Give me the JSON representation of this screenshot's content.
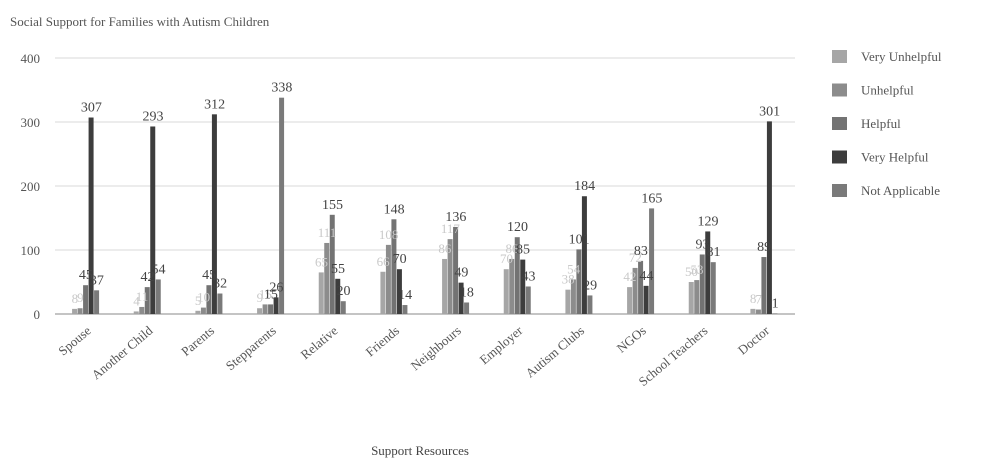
{
  "chart_data": {
    "type": "bar",
    "title": "Social Support for Families with Autism Children",
    "xlabel": "Support Resources",
    "ylabel": "",
    "ylim": [
      0,
      400
    ],
    "yticks": [
      "0",
      "100",
      "200",
      "300",
      "400"
    ],
    "grid": true,
    "legend_position": "right",
    "categories": [
      "Spouse",
      "Another Child",
      "Parents",
      "Stepparents",
      "Relative",
      "Friends",
      "Neighbours",
      "Employer",
      "Autism Clubs",
      "NGOs",
      "School Teachers",
      "Doctor"
    ],
    "series": [
      {
        "name": "Very Unhelpful",
        "color": "#a6a6a6",
        "values": [
          8,
          4,
          5,
          9,
          65,
          66,
          86,
          70,
          38,
          42,
          50,
          8
        ]
      },
      {
        "name": "Unhelpful",
        "color": "#8c8c8c",
        "values": [
          9,
          11,
          10,
          15,
          111,
          108,
          117,
          86,
          54,
          72,
          53,
          7
        ]
      },
      {
        "name": "Helpful",
        "color": "#737373",
        "values": [
          45,
          42,
          45,
          15,
          155,
          148,
          136,
          120,
          101,
          83,
          93,
          89
        ]
      },
      {
        "name": "Very Helpful",
        "color": "#3d3d3d",
        "values": [
          307,
          293,
          312,
          26,
          55,
          70,
          49,
          85,
          184,
          44,
          129,
          301
        ]
      },
      {
        "name": "Not Applicable",
        "color": "#7a7a7a",
        "values": [
          37,
          54,
          32,
          338,
          20,
          14,
          18,
          43,
          29,
          165,
          81,
          1
        ]
      }
    ]
  }
}
